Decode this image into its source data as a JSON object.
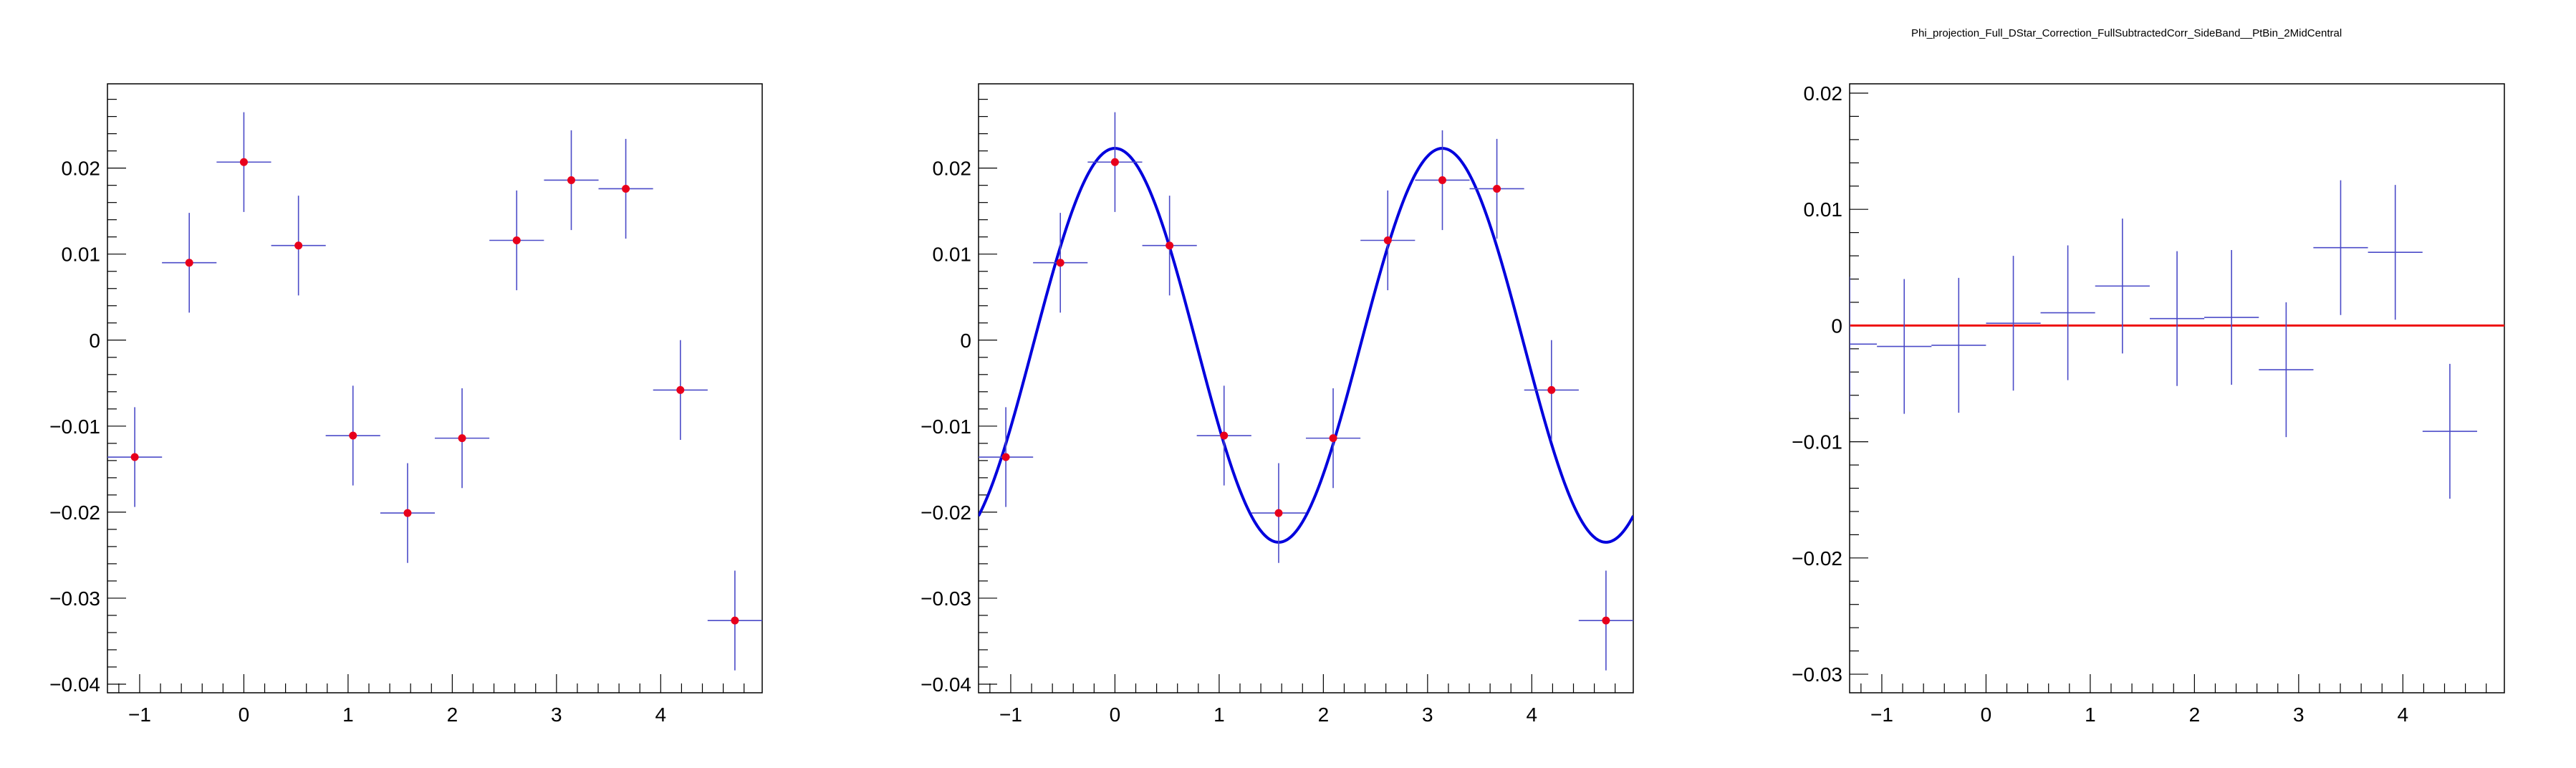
{
  "canvas_title": "Phi_projection_Full_DStar_Correction_FullSubtractedCorr_SideBand__PtBin_2MidCentral",
  "colors": {
    "marker": "#e8001c",
    "errorbar": "#4b4bc8",
    "fit_curve": "#0000dd",
    "fit_line": "#ee1111",
    "frame": "#000000"
  },
  "chart_data": [
    {
      "type": "scatter",
      "title": "",
      "xlabel": "",
      "ylabel": "",
      "xlim": [
        -1.309,
        4.974
      ],
      "ylim": [
        -0.041,
        0.0298
      ],
      "grid": false,
      "x_ticks": [
        -1,
        0,
        1,
        2,
        3,
        4
      ],
      "x_tick_labels": [
        "−1",
        "0",
        "1",
        "2",
        "3",
        "4"
      ],
      "y_ticks": [
        -0.04,
        -0.03,
        -0.02,
        -0.01,
        0,
        0.01,
        0.02
      ],
      "y_tick_labels": [
        "−0.04",
        "−0.03",
        "−0.02",
        "−0.01",
        "0",
        "0.01",
        "0.02"
      ],
      "bin_half_width": 0.2618,
      "series": [
        {
          "x": [
            -1.047,
            -0.524,
            0.0,
            0.524,
            1.047,
            1.571,
            2.094,
            2.618,
            3.142,
            3.665,
            4.189,
            4.712
          ],
          "y": [
            -0.0136,
            0.009,
            0.0207,
            0.011,
            -0.0111,
            -0.0201,
            -0.0114,
            0.0116,
            0.0186,
            0.0176,
            -0.0058,
            -0.0326
          ],
          "yerr": [
            0.0058,
            0.0058,
            0.0058,
            0.0058,
            0.0058,
            0.0058,
            0.0058,
            0.0058,
            0.0058,
            0.0058,
            0.0058,
            0.0058
          ]
        }
      ]
    },
    {
      "type": "scatter",
      "title": "",
      "xlabel": "",
      "ylabel": "",
      "xlim": [
        -1.309,
        4.974
      ],
      "ylim": [
        -0.041,
        0.0298
      ],
      "grid": false,
      "x_ticks": [
        -1,
        0,
        1,
        2,
        3,
        4
      ],
      "x_tick_labels": [
        "−1",
        "0",
        "1",
        "2",
        "3",
        "4"
      ],
      "y_ticks": [
        -0.04,
        -0.03,
        -0.02,
        -0.01,
        0,
        0.01,
        0.02
      ],
      "y_tick_labels": [
        "−0.04",
        "−0.03",
        "−0.02",
        "−0.01",
        "0",
        "0.01",
        "0.02"
      ],
      "bin_half_width": 0.2618,
      "series": [
        {
          "x": [
            -1.047,
            -0.524,
            0.0,
            0.524,
            1.047,
            1.571,
            2.094,
            2.618,
            3.142,
            3.665,
            4.189,
            4.712
          ],
          "y": [
            -0.0136,
            0.009,
            0.0207,
            0.011,
            -0.0111,
            -0.0201,
            -0.0114,
            0.0116,
            0.0186,
            0.0176,
            -0.0058,
            -0.0326
          ],
          "yerr": [
            0.0058,
            0.0058,
            0.0058,
            0.0058,
            0.0058,
            0.0058,
            0.0058,
            0.0058,
            0.0058,
            0.0058,
            0.0058,
            0.0058
          ]
        }
      ],
      "fit": {
        "form": "a + b*cos(2x)",
        "a": -0.0006,
        "b": 0.0229
      }
    },
    {
      "type": "scatter",
      "title": "",
      "xlabel": "",
      "ylabel": "",
      "xlim": [
        -1.309,
        4.974
      ],
      "ylim": [
        -0.0316,
        0.0208
      ],
      "grid": false,
      "x_ticks": [
        -1,
        0,
        1,
        2,
        3,
        4
      ],
      "x_tick_labels": [
        "−1",
        "0",
        "1",
        "2",
        "3",
        "4"
      ],
      "y_ticks": [
        -0.03,
        -0.02,
        -0.01,
        0,
        0.01,
        0.02
      ],
      "y_tick_labels": [
        "−0.03",
        "−0.02",
        "−0.01",
        "0",
        "0.01",
        "0.02"
      ],
      "bin_half_width": 0.2618,
      "series": [
        {
          "x": [
            -1.309,
            -0.785,
            -0.262,
            0.262,
            0.785,
            1.309,
            1.833,
            2.356,
            2.88,
            3.403,
            3.927,
            4.451
          ],
          "y": [
            -0.0016,
            -0.0018,
            -0.0017,
            0.0002,
            0.0011,
            0.0034,
            0.0006,
            0.0007,
            -0.0038,
            0.0067,
            0.0063,
            -0.0091
          ],
          "yerr": [
            0.0058,
            0.0058,
            0.0058,
            0.0058,
            0.0058,
            0.0058,
            0.0058,
            0.0058,
            0.0058,
            0.0058,
            0.0058,
            0.0058
          ]
        }
      ],
      "fit": {
        "form": "constant",
        "a": 0.0
      }
    }
  ]
}
